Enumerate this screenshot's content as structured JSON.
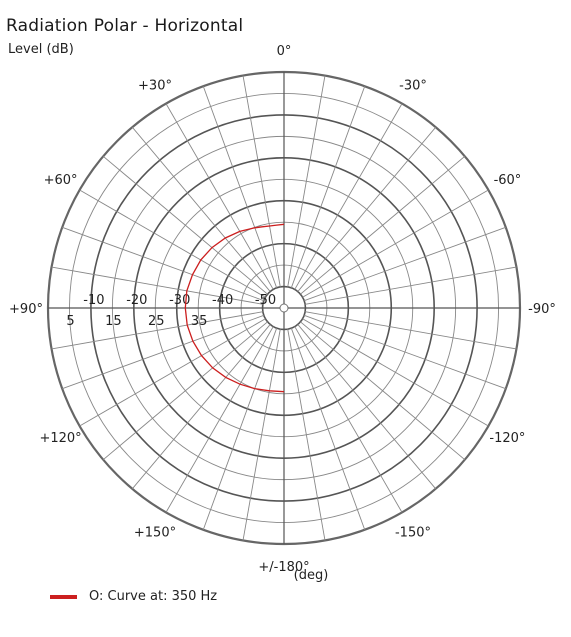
{
  "chart_data": {
    "type": "polar",
    "title": "Radiation Polar - Horizontal",
    "radial_label": "Level  (dB)",
    "angle_unit_label": "(deg)",
    "radial_range": [
      -55,
      0
    ],
    "radial_ticks_upper": [
      "-10",
      "-20",
      "-30",
      "-40",
      "-50"
    ],
    "radial_ticks_lower": [
      "5",
      "15",
      "25",
      "35"
    ],
    "angle_labels": [
      {
        "deg": 0,
        "text": "0°"
      },
      {
        "deg": -30,
        "text": "-30°"
      },
      {
        "deg": -60,
        "text": "-60°"
      },
      {
        "deg": -90,
        "text": "-90°"
      },
      {
        "deg": -120,
        "text": "-120°"
      },
      {
        "deg": -150,
        "text": "-150°"
      },
      {
        "deg": 180,
        "text": "+/-180°"
      },
      {
        "deg": 150,
        "text": "+150°"
      },
      {
        "deg": 120,
        "text": "+120°"
      },
      {
        "deg": 90,
        "text": "+90°"
      },
      {
        "deg": 60,
        "text": "+60°"
      },
      {
        "deg": 30,
        "text": "+30°"
      }
    ],
    "grid": true,
    "legend_position": "bottom-left",
    "series": [
      {
        "name": "O: Curve at: 350 Hz",
        "color": "#cc1f1f",
        "angle_deg": [
          0,
          5,
          10,
          15,
          20,
          30,
          40,
          50,
          60,
          70,
          80,
          90,
          100,
          110,
          120,
          130,
          140,
          150,
          160,
          170,
          180
        ],
        "level_db": [
          -35.5,
          -35.6,
          -35.6,
          -35.4,
          -35.1,
          -34.4,
          -33.7,
          -33.1,
          -32.6,
          -32.3,
          -32.0,
          -32.0,
          -32.1,
          -32.4,
          -32.8,
          -33.3,
          -33.9,
          -34.5,
          -35.0,
          -35.4,
          -35.5
        ]
      }
    ]
  }
}
